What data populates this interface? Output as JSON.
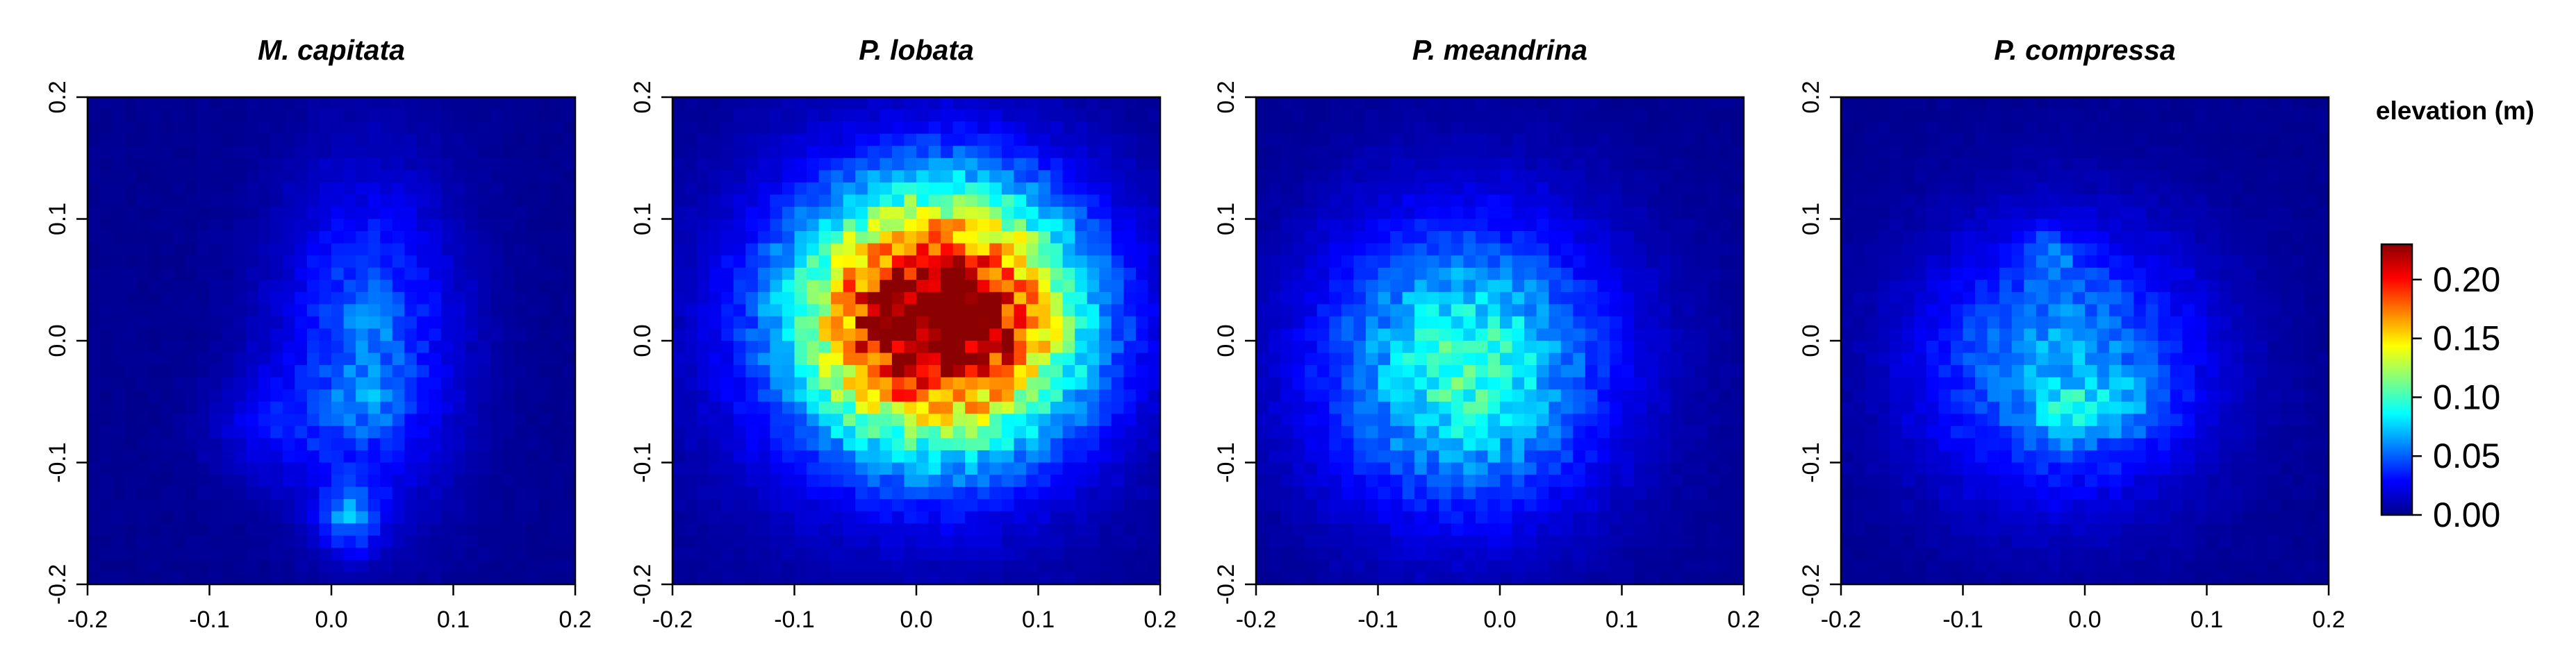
{
  "chart_data": {
    "type": "heatmap",
    "xlim": [
      -0.2,
      0.2
    ],
    "ylim": [
      -0.2,
      0.2
    ],
    "x_ticks": [
      -0.2,
      -0.1,
      0.0,
      0.1,
      0.2
    ],
    "x_tick_labels": [
      "-0.2",
      "-0.1",
      "0.0",
      "0.1",
      "0.2"
    ],
    "y_ticks": [
      -0.2,
      -0.1,
      0.0,
      0.1,
      0.2
    ],
    "y_tick_labels": [
      "-0.2",
      "-0.1",
      "0.0",
      "0.1",
      "0.2"
    ],
    "grid": false,
    "colorscale": [
      "#00008b",
      "#0000ff",
      "#0080ff",
      "#00ffff",
      "#80ff80",
      "#ffff00",
      "#ff8000",
      "#ff0000",
      "#8b0000"
    ],
    "colorbar": {
      "title": "elevation (m)",
      "range": [
        0.0,
        0.23
      ],
      "ticks": [
        0.0,
        0.05,
        0.1,
        0.15,
        0.2
      ],
      "tick_labels": [
        "0.00",
        "0.05",
        "0.10",
        "0.15",
        "0.20"
      ]
    },
    "grid_resolution": 40,
    "panels": [
      {
        "title": "M. capitata",
        "peak_elevation": 0.07,
        "blobs": [
          {
            "x": 0.03,
            "y": 0.0,
            "sx": 0.05,
            "sy": 0.09,
            "amp": 0.05
          },
          {
            "x": 0.03,
            "y": -0.05,
            "sx": 0.018,
            "sy": 0.02,
            "amp": 0.02
          },
          {
            "x": 0.035,
            "y": 0.02,
            "sx": 0.012,
            "sy": 0.012,
            "amp": 0.02
          },
          {
            "x": 0.015,
            "y": -0.145,
            "sx": 0.018,
            "sy": 0.02,
            "amp": 0.05
          },
          {
            "x": -0.05,
            "y": -0.07,
            "sx": 0.035,
            "sy": 0.03,
            "amp": 0.02
          }
        ]
      },
      {
        "title": "P. lobata",
        "peak_elevation": 0.23,
        "blobs": [
          {
            "x": 0.02,
            "y": 0.02,
            "sx": 0.075,
            "sy": 0.068,
            "amp": 0.23
          },
          {
            "x": 0.0,
            "y": 0.0,
            "sx": 0.11,
            "sy": 0.105,
            "amp": 0.04
          }
        ]
      },
      {
        "title": "P. meandrina",
        "peak_elevation": 0.1,
        "blobs": [
          {
            "x": -0.03,
            "y": -0.02,
            "sx": 0.085,
            "sy": 0.085,
            "amp": 0.085
          },
          {
            "x": -0.02,
            "y": -0.03,
            "sx": 0.04,
            "sy": 0.045,
            "amp": 0.015
          }
        ]
      },
      {
        "title": "P. compressa",
        "peak_elevation": 0.12,
        "blobs": [
          {
            "x": -0.02,
            "y": -0.02,
            "sx": 0.08,
            "sy": 0.075,
            "amp": 0.065
          },
          {
            "x": -0.01,
            "y": -0.06,
            "sx": 0.02,
            "sy": 0.015,
            "amp": 0.035
          },
          {
            "x": -0.03,
            "y": 0.07,
            "sx": 0.015,
            "sy": 0.015,
            "amp": 0.03
          },
          {
            "x": 0.04,
            "y": -0.05,
            "sx": 0.025,
            "sy": 0.02,
            "amp": 0.02
          }
        ]
      }
    ]
  }
}
